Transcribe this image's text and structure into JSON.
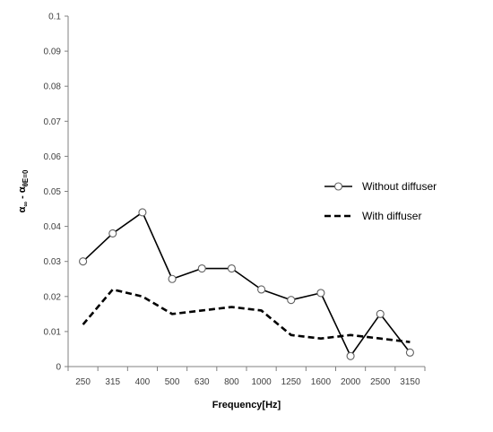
{
  "chart_data": {
    "type": "line",
    "xlabel": "Frequency[Hz]",
    "ylabel": "α∞ - αθE=0",
    "ylim": [
      0,
      0.1
    ],
    "ytick_step": 0.01,
    "ytick_labels": [
      "0",
      "0.01",
      "0.02",
      "0.03",
      "0.04",
      "0.05",
      "0.06",
      "0.07",
      "0.08",
      "0.09",
      "0.1"
    ],
    "categories": [
      "250",
      "315",
      "400",
      "500",
      "630",
      "800",
      "1000",
      "1250",
      "1600",
      "2000",
      "2500",
      "3150"
    ],
    "legend_position": "right",
    "grid": false,
    "series": [
      {
        "name": "Without diffuser",
        "style": "solid",
        "marker": "circle",
        "color": "#000000",
        "values": [
          0.03,
          0.038,
          0.044,
          0.025,
          0.028,
          0.028,
          0.022,
          0.019,
          0.021,
          0.003,
          0.015,
          0.004
        ]
      },
      {
        "name": "With diffuser",
        "style": "dashed",
        "marker": "none",
        "color": "#000000",
        "values": [
          0.012,
          0.022,
          0.02,
          0.015,
          0.016,
          0.017,
          0.016,
          0.009,
          0.008,
          0.009,
          0.008,
          0.007
        ]
      }
    ]
  }
}
